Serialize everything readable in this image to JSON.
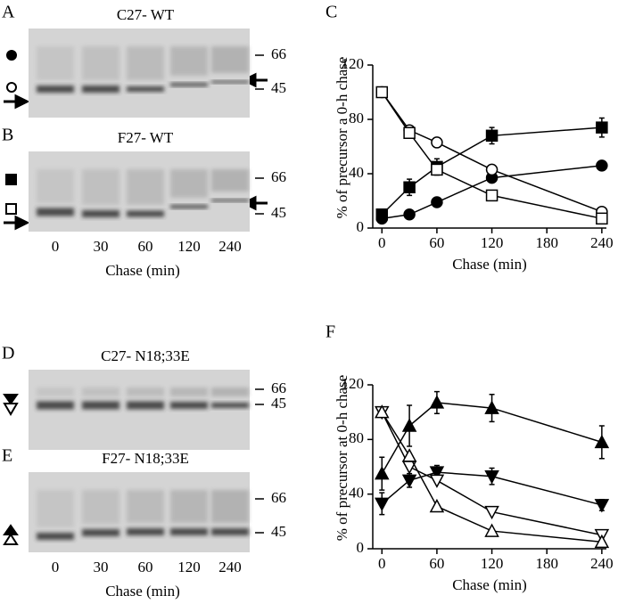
{
  "gels": [
    {
      "label": "A",
      "title": "C27- WT",
      "size_markers": [
        "66",
        "45"
      ]
    },
    {
      "label": "B",
      "title": "F27- WT",
      "size_markers": [
        "66",
        "45"
      ],
      "lanes": [
        "0",
        "30",
        "60",
        "120",
        "240"
      ],
      "xlabel": "Chase (min)"
    },
    {
      "label": "D",
      "title": "C27- N18;33E",
      "size_markers": [
        "66",
        "45"
      ]
    },
    {
      "label": "E",
      "title": "F27- N18;33E",
      "size_markers": [
        "66",
        "45"
      ],
      "lanes": [
        "0",
        "30",
        "60",
        "120",
        "240"
      ],
      "xlabel": "Chase (min)"
    }
  ],
  "chart_data": [
    {
      "type": "line",
      "label": "C",
      "xlabel": "Chase (min)",
      "ylabel": "% of precursor a 0-h chase",
      "x": [
        0,
        30,
        60,
        120,
        240
      ],
      "xlim": [
        -10,
        245
      ],
      "xticks": [
        0,
        60,
        120,
        180,
        240
      ],
      "ylim": [
        0,
        120
      ],
      "yticks": [
        0,
        40,
        80,
        120
      ],
      "series": [
        {
          "marker": "filled-square",
          "color": "#000",
          "values": [
            10,
            30,
            45,
            68,
            74
          ],
          "errors": [
            3,
            6,
            6,
            6,
            7
          ]
        },
        {
          "marker": "filled-circle",
          "color": "#000",
          "values": [
            7,
            10,
            19,
            37,
            46
          ]
        },
        {
          "marker": "open-circle",
          "color": "#000",
          "values": [
            100,
            72,
            63,
            43,
            12
          ]
        },
        {
          "marker": "open-square",
          "color": "#000",
          "values": [
            100,
            70,
            43,
            24,
            7
          ]
        }
      ]
    },
    {
      "type": "line",
      "label": "F",
      "xlabel": "Chase (min)",
      "ylabel": "% of precursor at 0-h chase",
      "x": [
        0,
        30,
        60,
        120,
        240
      ],
      "xlim": [
        -10,
        245
      ],
      "xticks": [
        0,
        60,
        120,
        180,
        240
      ],
      "ylim": [
        0,
        120
      ],
      "yticks": [
        0,
        40,
        80,
        120
      ],
      "series": [
        {
          "marker": "filled-up-triangle",
          "color": "#000",
          "values": [
            55,
            90,
            107,
            103,
            78
          ],
          "errors": [
            12,
            15,
            8,
            10,
            12
          ]
        },
        {
          "marker": "filled-down-triangle",
          "color": "#000",
          "values": [
            33,
            50,
            56,
            53,
            32
          ],
          "errors": [
            8,
            5,
            5,
            6,
            4
          ]
        },
        {
          "marker": "open-down-triangle",
          "color": "#000",
          "values": [
            100,
            60,
            50,
            27,
            10
          ]
        },
        {
          "marker": "open-up-triangle",
          "color": "#000",
          "values": [
            100,
            68,
            31,
            13,
            5
          ]
        }
      ]
    }
  ]
}
